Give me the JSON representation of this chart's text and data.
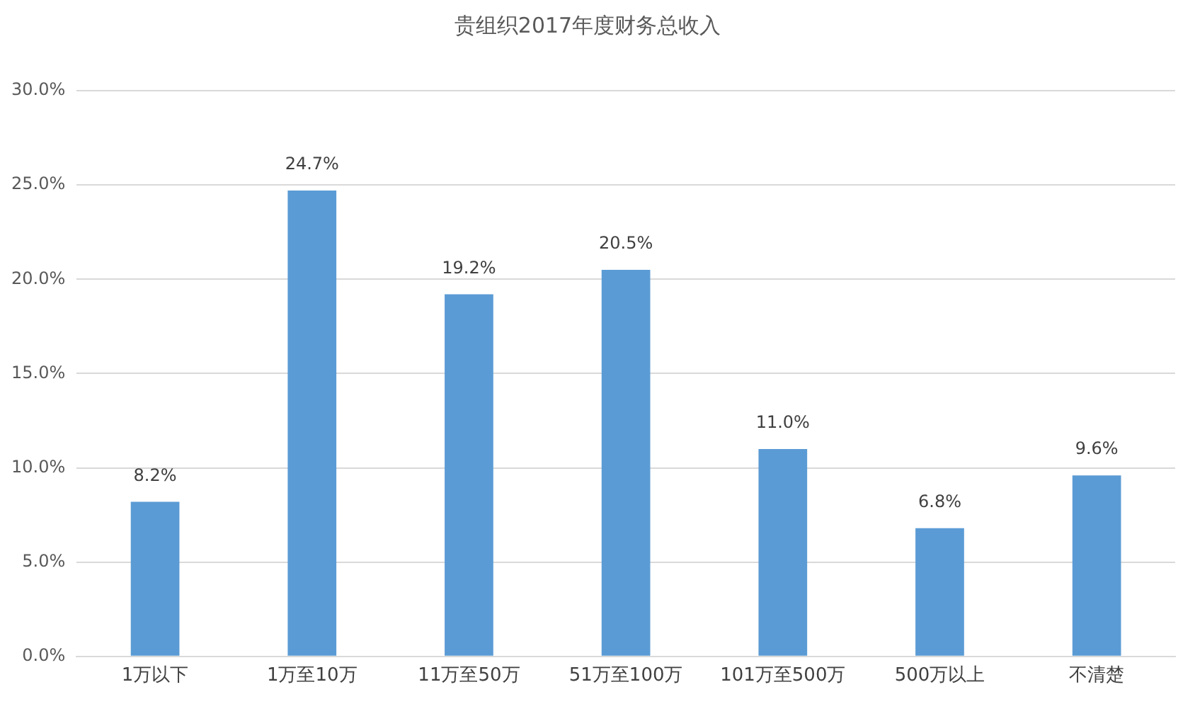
{
  "chart_data": {
    "type": "bar",
    "title": "贵组织2017年度财务总收入",
    "categories": [
      "1万以下",
      "1万至10万",
      "11万至50万",
      "51万至100万",
      "101万至500万",
      "500万以上",
      "不清楚"
    ],
    "values": [
      8.2,
      24.7,
      19.2,
      20.5,
      11.0,
      6.8,
      9.6
    ],
    "value_labels": [
      "8.2%",
      "24.7%",
      "19.2%",
      "20.5%",
      "11.0%",
      "6.8%",
      "9.6%"
    ],
    "color": "#5b9bd5",
    "ylim": [
      0,
      30
    ],
    "yticks": [
      {
        "value": 0,
        "label": "0.0%"
      },
      {
        "value": 5,
        "label": "5.0%"
      },
      {
        "value": 10,
        "label": "10.0%"
      },
      {
        "value": 15,
        "label": "15.0%"
      },
      {
        "value": 20,
        "label": "20.0%"
      },
      {
        "value": 25,
        "label": "25.0%"
      },
      {
        "value": 30,
        "label": "30.0%"
      }
    ],
    "grid": "y",
    "legend": false
  }
}
